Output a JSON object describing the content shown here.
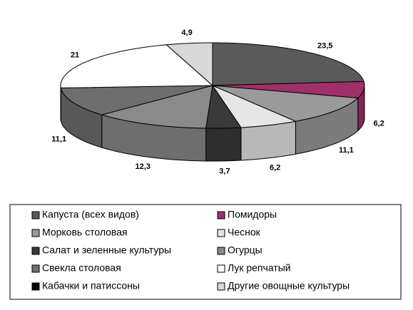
{
  "chart_data": {
    "type": "pie3d",
    "categories": [
      "Капуста (всех видов)",
      "Помидоры",
      "Морковь столовая",
      "Чеснок",
      "Салат и зеленные культуры",
      "Огурцы",
      "Свекла столовая",
      "Лук репчатый",
      "Кабачки и патиссоны",
      "Другие овощные культуры"
    ],
    "values": [
      23.5,
      6.2,
      11.1,
      6.2,
      3.7,
      12.3,
      11.1,
      21,
      null,
      4.9
    ],
    "value_labels": [
      "23,5",
      "6,2",
      "11,1",
      "6,2",
      "3,7",
      "12,3",
      "11,1",
      "21",
      null,
      "4,9"
    ],
    "colors": [
      "#5a5a5a",
      "#a0306a",
      "#9a9a9a",
      "#e6e6e6",
      "#3a3a3a",
      "#8a8a8a",
      "#6e6e6e",
      "#ffffff",
      "#000000",
      "#d8d8d8"
    ]
  }
}
